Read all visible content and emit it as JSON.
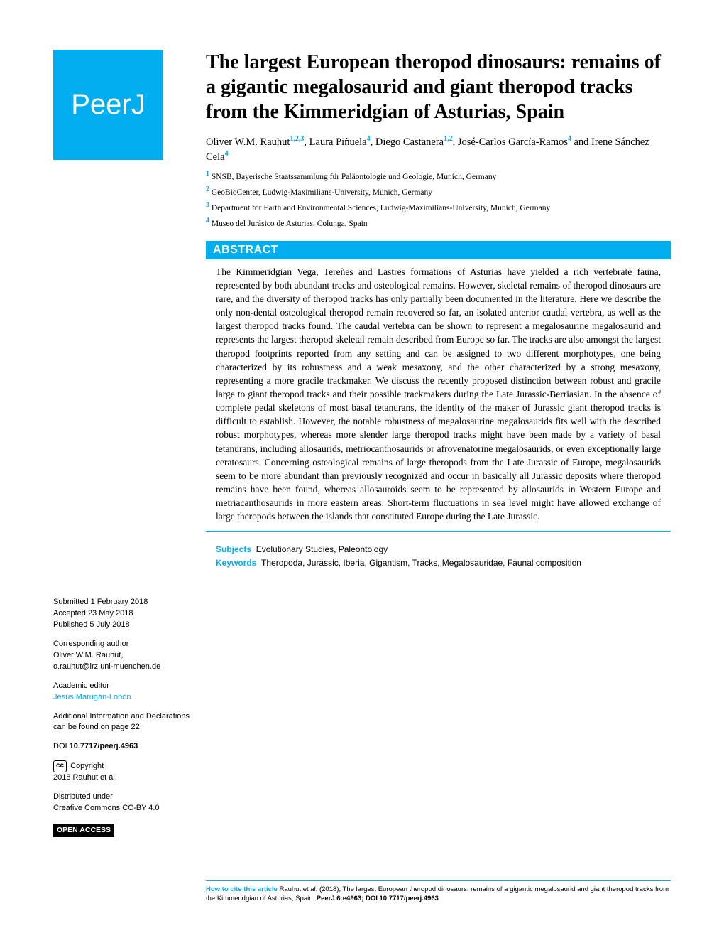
{
  "logo": "PeerJ",
  "title": "The largest European theropod dinosaurs: remains of a gigantic megalosaurid and giant theropod tracks from the Kimmeridgian of Asturias, Spain",
  "authors_html": "Oliver W.M. Rauhut<sup class='sup'>1,2,3</sup>, Laura Piñuela<sup class='sup'>4</sup>, Diego Castanera<sup class='sup'>1,2</sup>, José-Carlos García-Ramos<sup class='sup'>4</sup> and Irene Sánchez Cela<sup class='sup'>4</sup>",
  "affiliations": [
    {
      "n": "1",
      "text": "SNSB, Bayerische Staatssammlung für Paläontologie und Geologie, Munich, Germany"
    },
    {
      "n": "2",
      "text": "GeoBioCenter, Ludwig-Maximilians-University, Munich, Germany"
    },
    {
      "n": "3",
      "text": "Department for Earth and Environmental Sciences, Ludwig-Maximilians-University, Munich, Germany"
    },
    {
      "n": "4",
      "text": "Museo del Jurásico de Asturias, Colunga, Spain"
    }
  ],
  "abstract_label": "ABSTRACT",
  "abstract": "The Kimmeridgian Vega, Tereñes and Lastres formations of Asturias have yielded a rich vertebrate fauna, represented by both abundant tracks and osteological remains. However, skeletal remains of theropod dinosaurs are rare, and the diversity of theropod tracks has only partially been documented in the literature. Here we describe the only non-dental osteological theropod remain recovered so far, an isolated anterior caudal vertebra, as well as the largest theropod tracks found. The caudal vertebra can be shown to represent a megalosaurine megalosaurid and represents the largest theropod skeletal remain described from Europe so far. The tracks are also amongst the largest theropod footprints reported from any setting and can be assigned to two different morphotypes, one being characterized by its robustness and a weak mesaxony, and the other characterized by a strong mesaxony, representing a more gracile trackmaker. We discuss the recently proposed distinction between robust and gracile large to giant theropod tracks and their possible trackmakers during the Late Jurassic-Berriasian. In the absence of complete pedal skeletons of most basal tetanurans, the identity of the maker of Jurassic giant theropod tracks is difficult to establish. However, the notable robustness of megalosaurine megalosaurids fits well with the described robust morphotypes, whereas more slender large theropod tracks might have been made by a variety of basal tetanurans, including allosaurids, metriocanthosaurids or afrovenatorine megalosaurids, or even exceptionally large ceratosaurs. Concerning osteological remains of large theropods from the Late Jurassic of Europe, megalosaurids seem to be more abundant than previously recognized and occur in basically all Jurassic deposits where theropod remains have been found, whereas allosauroids seem to be represented by allosaurids in Western Europe and metriacanthosaurids in more eastern areas. Short-term fluctuations in sea level might have allowed exchange of large theropods between the islands that constituted Europe during the Late Jurassic.",
  "sidebar": {
    "submitted_label": "Submitted",
    "submitted": "1 February 2018",
    "accepted_label": "Accepted",
    "accepted": "23 May 2018",
    "published_label": "Published",
    "published": "5 July 2018",
    "corresp_label": "Corresponding author",
    "corresp_name": "Oliver W.M. Rauhut,",
    "corresp_email": "o.rauhut@lrz.uni-muenchen.de",
    "editor_label": "Academic editor",
    "editor_name": "Jesús Marugán-Lobón",
    "addl_info": "Additional Information and Declarations can be found on page 22",
    "doi_label": "DOI",
    "doi": "10.7717/peerj.4963",
    "copyright_label": "Copyright",
    "copyright": "2018 Rauhut et al.",
    "distributed_label": "Distributed under",
    "distributed": "Creative Commons CC-BY 4.0",
    "open_access": "OPEN ACCESS"
  },
  "subjects_label": "Subjects",
  "subjects": "Evolutionary Studies, Paleontology",
  "keywords_label": "Keywords",
  "keywords": "Theropoda, Jurassic, Iberia, Gigantism, Tracks, Megalosauridae, Faunal composition",
  "citation_label": "How to cite this article",
  "citation": "Rauhut et al. (2018), The largest European theropod dinosaurs: remains of a gigantic megalosaurid and giant theropod tracks from the Kimmeridgian of Asturias, Spain.",
  "citation_journal": "PeerJ 6:e4963; DOI 10.7717/peerj.4963",
  "colors": {
    "brand": "#00aeef",
    "text": "#000000",
    "bg": "#ffffff"
  }
}
